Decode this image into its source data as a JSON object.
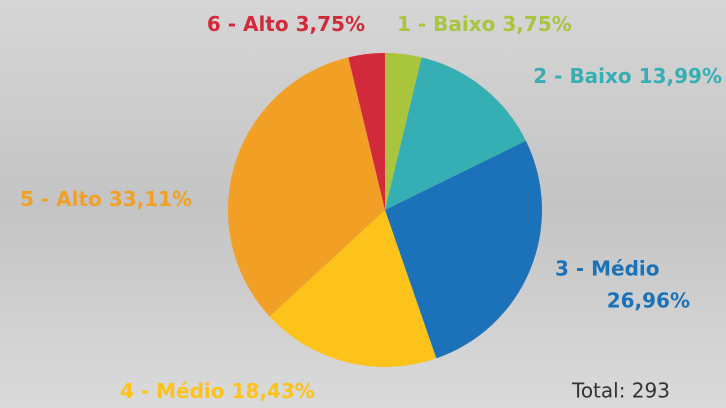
{
  "chart_data": {
    "type": "pie",
    "categories": [
      "1 - Baixo",
      "2 - Baixo",
      "3 - Médio",
      "4 - Médio",
      "5 - Alto",
      "6 - Alto"
    ],
    "values": [
      3.75,
      13.99,
      26.96,
      18.43,
      33.11,
      3.75
    ],
    "value_labels": [
      "3,75%",
      "13,99%",
      "26,96%",
      "18,43%",
      "33,11%",
      "3,75%"
    ],
    "colors": [
      "#a9c43d",
      "#35afb4",
      "#1b72b8",
      "#fdc31a",
      "#f29f26",
      "#d12a3a"
    ],
    "annotation": "Total: 293"
  }
}
